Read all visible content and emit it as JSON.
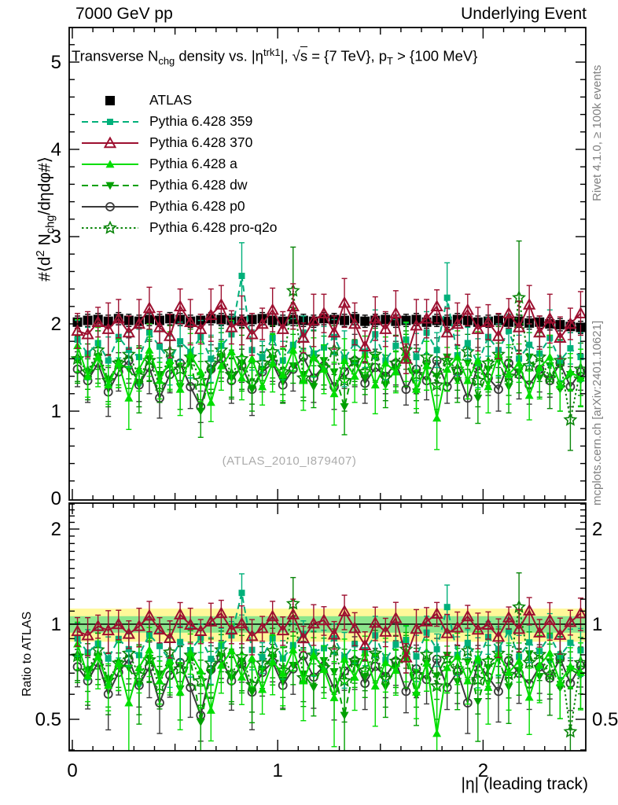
{
  "header": {
    "left": "7000 GeV pp",
    "right": "Underlying Event"
  },
  "title_segments": [
    {
      "t": "Transverse N"
    },
    {
      "t": "chg",
      "m": "sub"
    },
    {
      "t": " density vs. |η",
      "m": ""
    },
    {
      "t": "trk1",
      "m": "sup"
    },
    {
      "t": "|, "
    },
    {
      "t": "√"
    },
    {
      "t": "s",
      "m": "ov"
    },
    {
      "t": " = {7 TeV}, p"
    },
    {
      "t": "T",
      "m": "sub"
    },
    {
      "t": " > {100 MeV}"
    }
  ],
  "y_label_segments": [
    {
      "t": "#⟨d"
    },
    {
      "t": "2",
      "m": "sup"
    },
    {
      "t": " N"
    },
    {
      "t": "chg",
      "m": "sub"
    },
    {
      "t": "/dηdφ#⟩"
    }
  ],
  "side_notes": {
    "top": "Rivet 4.1.0, ≥ 100k events",
    "bottom": "mcplots.cern.ch [arXiv:2401.10621]"
  },
  "watermark": "(ATLAS_2010_I879407)",
  "chart_data": {
    "type": "scatter",
    "title": "Transverse Nchg density vs. |eta_trk1|, sqrt(s) = {7 TeV}, pT > {100 MeV}",
    "x_label": "|η| (leading track)",
    "ratio_label": "Ratio to ATLAS",
    "xlim": [
      0,
      2.5
    ],
    "main_ylim": [
      0,
      5.4
    ],
    "ratio_ylim": [
      0.4,
      2.42
    ],
    "ratio_log": true,
    "grid": false,
    "legend_position": "top-left",
    "x_ticks": [
      {
        "v": 0,
        "t": "0"
      },
      {
        "v": 1,
        "t": "1"
      },
      {
        "v": 2,
        "t": "2"
      }
    ],
    "main_y_ticks": [
      {
        "v": 0,
        "t": "0"
      },
      {
        "v": 1,
        "t": "1"
      },
      {
        "v": 2,
        "t": "2"
      },
      {
        "v": 3,
        "t": "3"
      },
      {
        "v": 4,
        "t": "4"
      },
      {
        "v": 5,
        "t": "5"
      }
    ],
    "ratio_y_ticks": [
      {
        "v": 0.5,
        "t": "0.5"
      },
      {
        "v": 1,
        "t": "1"
      },
      {
        "v": 2,
        "t": "2"
      }
    ],
    "bands": [
      {
        "lo": 0.88,
        "hi": 1.12,
        "color": "#FFF899",
        "name": "data-uncertainty-10pct"
      },
      {
        "lo": 0.94,
        "hi": 1.06,
        "color": "#8CE68C",
        "name": "data-uncertainty-5pct"
      }
    ],
    "ratio_reference_line": 1,
    "x": [
      0.025,
      0.075,
      0.125,
      0.175,
      0.225,
      0.275,
      0.325,
      0.375,
      0.425,
      0.475,
      0.525,
      0.575,
      0.625,
      0.675,
      0.725,
      0.775,
      0.825,
      0.875,
      0.925,
      0.975,
      1.025,
      1.075,
      1.125,
      1.175,
      1.225,
      1.275,
      1.325,
      1.375,
      1.425,
      1.475,
      1.525,
      1.575,
      1.625,
      1.675,
      1.725,
      1.775,
      1.825,
      1.875,
      1.925,
      1.975,
      2.025,
      2.075,
      2.125,
      2.175,
      2.225,
      2.275,
      2.325,
      2.375,
      2.425,
      2.475
    ],
    "series": [
      {
        "key": "atlas",
        "label": "ATLAS",
        "color": "#000000",
        "marker": "square-filled",
        "line": "none",
        "msize": 12,
        "values": [
          2.02,
          2.04,
          2.05,
          2.03,
          2.06,
          2.04,
          2.03,
          2.05,
          2.04,
          2.06,
          2.05,
          2.03,
          2.04,
          2.06,
          2.05,
          2.04,
          2.03,
          2.05,
          2.06,
          2.04,
          2.03,
          2.05,
          2.04,
          2.03,
          2.06,
          2.05,
          2.04,
          2.06,
          2.03,
          2.04,
          2.05,
          2.03,
          2.04,
          2.05,
          2.02,
          2.04,
          2.03,
          2.05,
          2.04,
          2.02,
          2.03,
          2.04,
          2.02,
          2.03,
          2.01,
          2.02,
          2.0,
          1.99,
          1.97,
          1.96
        ],
        "errs": 0.07
      },
      {
        "key": "p359",
        "label": "Pythia 6.428 359",
        "color": "#00B07A",
        "marker": "square-filled",
        "line": "dashed",
        "msize": 8,
        "values": [
          1.82,
          1.66,
          1.78,
          1.58,
          1.85,
          1.7,
          1.62,
          1.9,
          1.74,
          1.58,
          1.8,
          1.68,
          1.85,
          1.6,
          1.75,
          1.88,
          2.55,
          1.7,
          1.62,
          1.84,
          1.58,
          1.76,
          1.9,
          1.66,
          1.73,
          1.85,
          1.6,
          1.78,
          1.68,
          1.88,
          1.58,
          1.75,
          1.82,
          1.62,
          1.9,
          1.7,
          2.3,
          1.64,
          1.78,
          1.55,
          1.85,
          1.7,
          1.92,
          1.6,
          1.76,
          1.66,
          1.84,
          1.58,
          1.72,
          1.62
        ],
        "errs": [
          0.22,
          0.3,
          0.19,
          0.27,
          0.24,
          0.2,
          0.32,
          0.23,
          0.18,
          0.28,
          0.22,
          0.3,
          0.19,
          0.27,
          0.24,
          0.2,
          0.38,
          0.23,
          0.18,
          0.28,
          0.22,
          0.3,
          0.19,
          0.27,
          0.24,
          0.2,
          0.32,
          0.23,
          0.18,
          0.28,
          0.22,
          0.3,
          0.19,
          0.27,
          0.24,
          0.2,
          0.4,
          0.23,
          0.18,
          0.28,
          0.22,
          0.3,
          0.19,
          0.27,
          0.24,
          0.2,
          0.32,
          0.23,
          0.18,
          0.28
        ]
      },
      {
        "key": "p370",
        "label": "Pythia 6.428 370",
        "color": "#9D1030",
        "marker": "triangle-open",
        "line": "solid",
        "msize": 13,
        "values": [
          1.92,
          1.88,
          2.02,
          1.94,
          2.06,
          1.9,
          2.0,
          2.18,
          1.96,
          1.86,
          2.2,
          2.02,
          1.94,
          2.1,
          2.22,
          1.96,
          2.04,
          1.88,
          2.0,
          2.16,
          1.94,
          2.2,
          1.84,
          2.04,
          2.12,
          1.9,
          2.24,
          2.0,
          1.74,
          2.06,
          1.94,
          2.12,
          1.6,
          1.98,
          2.06,
          2.2,
          1.9,
          2.0,
          2.16,
          1.94,
          2.02,
          1.86,
          2.12,
          1.96,
          2.22,
          1.9,
          2.06,
          1.84,
          2.0,
          2.12
        ],
        "errs": [
          0.2,
          0.26,
          0.17,
          0.3,
          0.22,
          0.19,
          0.28,
          0.24,
          0.18,
          0.25,
          0.2,
          0.26,
          0.17,
          0.3,
          0.22,
          0.19,
          0.28,
          0.24,
          0.18,
          0.25,
          0.2,
          0.26,
          0.17,
          0.3,
          0.22,
          0.19,
          0.28,
          0.24,
          0.18,
          0.25,
          0.2,
          0.26,
          0.17,
          0.3,
          0.22,
          0.19,
          0.28,
          0.24,
          0.18,
          0.25,
          0.2,
          0.26,
          0.17,
          0.3,
          0.22,
          0.19,
          0.28,
          0.24,
          0.18,
          0.25
        ]
      },
      {
        "key": "pa",
        "label": "Pythia 6.428 a",
        "color": "#00DD00",
        "marker": "triangle-filled",
        "line": "solid",
        "msize": 11,
        "values": [
          1.75,
          1.4,
          1.62,
          1.3,
          1.55,
          1.15,
          1.48,
          1.7,
          1.35,
          1.58,
          1.25,
          1.65,
          1.45,
          1.1,
          1.52,
          1.68,
          1.38,
          1.6,
          1.28,
          1.55,
          1.42,
          1.7,
          1.35,
          1.62,
          1.48,
          1.2,
          1.58,
          1.4,
          1.65,
          1.3,
          1.55,
          1.45,
          1.68,
          1.25,
          1.52,
          0.92,
          1.48,
          1.62,
          1.35,
          1.58,
          1.28,
          1.65,
          1.42,
          1.55,
          1.18,
          1.5,
          1.62,
          1.3,
          1.45,
          1.38
        ],
        "errs": [
          0.3,
          0.24,
          0.34,
          0.22,
          0.28,
          0.36,
          0.25,
          0.3,
          0.21,
          0.33,
          0.3,
          0.24,
          0.34,
          0.22,
          0.28,
          0.36,
          0.25,
          0.3,
          0.21,
          0.33,
          0.3,
          0.24,
          0.34,
          0.22,
          0.28,
          0.36,
          0.25,
          0.3,
          0.21,
          0.33,
          0.3,
          0.24,
          0.34,
          0.22,
          0.28,
          0.36,
          0.25,
          0.3,
          0.21,
          0.33,
          0.3,
          0.24,
          0.34,
          0.22,
          0.28,
          0.36,
          0.25,
          0.3,
          0.21,
          0.33
        ]
      },
      {
        "key": "pdw",
        "label": "Pythia 6.428 dw",
        "color": "#00A000",
        "marker": "triangle-down-filled",
        "line": "dashed",
        "msize": 11,
        "values": [
          1.58,
          1.45,
          1.62,
          1.35,
          1.55,
          1.48,
          1.3,
          1.6,
          1.42,
          1.52,
          1.28,
          1.58,
          1.0,
          1.45,
          1.62,
          1.38,
          1.55,
          1.25,
          1.48,
          1.6,
          1.35,
          1.52,
          1.42,
          1.28,
          1.58,
          1.45,
          1.05,
          1.55,
          1.38,
          1.62,
          1.3,
          1.48,
          1.58,
          1.22,
          1.52,
          1.4,
          1.62,
          1.35,
          1.55,
          1.15,
          1.48,
          1.58,
          1.28,
          1.45,
          1.62,
          1.38,
          1.52,
          1.25,
          1.42,
          1.35
        ],
        "errs": [
          0.26,
          0.2,
          0.3,
          0.24,
          0.28,
          0.22,
          0.32,
          0.25,
          0.19,
          0.29,
          0.26,
          0.2,
          0.3,
          0.24,
          0.28,
          0.22,
          0.32,
          0.25,
          0.19,
          0.29,
          0.26,
          0.2,
          0.3,
          0.24,
          0.28,
          0.22,
          0.32,
          0.25,
          0.19,
          0.29,
          0.26,
          0.2,
          0.3,
          0.24,
          0.28,
          0.22,
          0.32,
          0.25,
          0.19,
          0.29,
          0.26,
          0.2,
          0.3,
          0.24,
          0.28,
          0.22,
          0.32,
          0.25,
          0.19,
          0.29
        ]
      },
      {
        "key": "pp0",
        "label": "Pythia 6.428 p0",
        "color": "#3A3A3A",
        "marker": "circle-open",
        "line": "solid",
        "msize": 10,
        "values": [
          1.48,
          1.35,
          1.55,
          1.22,
          1.45,
          1.58,
          1.3,
          1.5,
          1.15,
          1.42,
          1.55,
          1.28,
          1.05,
          1.48,
          1.6,
          1.35,
          1.52,
          1.25,
          1.45,
          1.55,
          1.3,
          1.48,
          1.62,
          1.38,
          1.52,
          1.28,
          1.45,
          1.58,
          1.32,
          1.5,
          1.4,
          1.55,
          1.25,
          1.48,
          1.35,
          1.58,
          1.28,
          1.45,
          1.15,
          1.52,
          1.38,
          1.25,
          1.55,
          1.42,
          1.3,
          1.48,
          1.35,
          1.55,
          1.28,
          1.45
        ],
        "errs": [
          0.2,
          0.25,
          0.18,
          0.28,
          0.22,
          0.26,
          0.19,
          0.3,
          0.23,
          0.21,
          0.2,
          0.25,
          0.18,
          0.28,
          0.22,
          0.26,
          0.19,
          0.3,
          0.23,
          0.21,
          0.2,
          0.25,
          0.18,
          0.28,
          0.22,
          0.26,
          0.19,
          0.3,
          0.23,
          0.21,
          0.2,
          0.25,
          0.18,
          0.28,
          0.22,
          0.26,
          0.19,
          0.3,
          0.23,
          0.21,
          0.2,
          0.25,
          0.18,
          0.28,
          0.22,
          0.26,
          0.19,
          0.3,
          0.23,
          0.21
        ]
      },
      {
        "key": "pq2o",
        "label": "Pythia 6.428 pro-q2o",
        "color": "#0A850A",
        "marker": "star-open",
        "line": "dotted",
        "msize": 13,
        "values": [
          1.6,
          1.45,
          1.7,
          1.35,
          1.55,
          1.65,
          1.4,
          1.58,
          1.3,
          1.68,
          1.48,
          1.62,
          1.35,
          1.55,
          1.7,
          1.42,
          1.6,
          1.32,
          1.55,
          1.68,
          1.45,
          2.38,
          1.38,
          1.62,
          1.5,
          1.7,
          1.35,
          1.58,
          1.45,
          1.65,
          1.38,
          1.55,
          1.7,
          1.42,
          1.62,
          1.3,
          1.58,
          1.48,
          1.68,
          1.35,
          1.55,
          1.65,
          1.4,
          2.3,
          1.52,
          1.62,
          1.38,
          1.58,
          0.9,
          1.48
        ],
        "errs": [
          0.26,
          0.32,
          0.22,
          0.3,
          0.25,
          0.28,
          0.35,
          0.24,
          0.2,
          0.3,
          0.26,
          0.32,
          0.22,
          0.3,
          0.25,
          0.28,
          0.35,
          0.24,
          0.2,
          0.3,
          0.26,
          0.5,
          0.22,
          0.3,
          0.25,
          0.28,
          0.35,
          0.24,
          0.2,
          0.3,
          0.26,
          0.32,
          0.22,
          0.3,
          0.25,
          0.28,
          0.35,
          0.24,
          0.2,
          0.3,
          0.26,
          0.32,
          0.22,
          0.65,
          0.25,
          0.28,
          0.35,
          0.24,
          0.35,
          0.3
        ]
      }
    ]
  }
}
